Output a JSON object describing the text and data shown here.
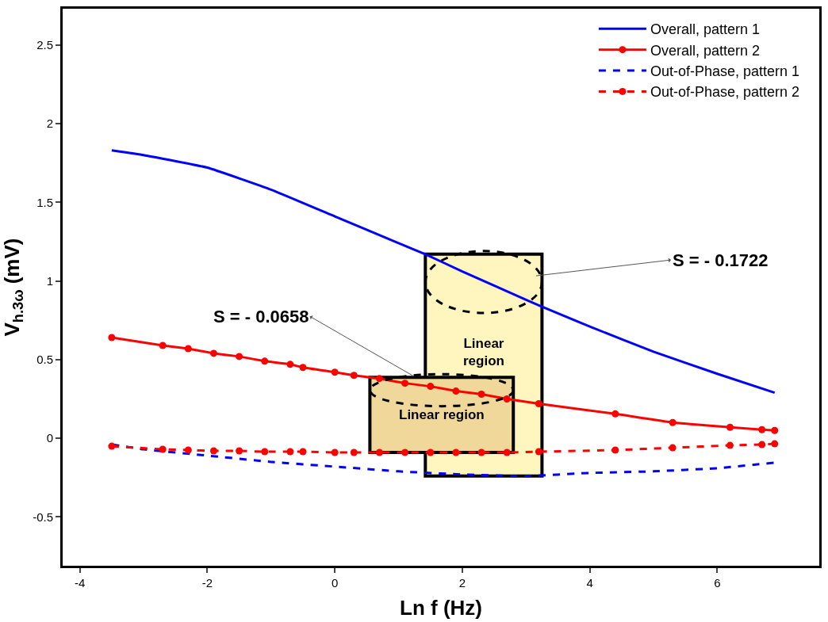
{
  "chart_data": {
    "type": "line",
    "xlabel": "Ln f (Hz)",
    "ylabel": "V$_{h.3ω}$ (mV)",
    "xlim": [
      -4.27,
      7.6
    ],
    "xticks": [
      -4,
      -2,
      0,
      2,
      4,
      6
    ],
    "ylim": [
      -0.81,
      2.73
    ],
    "yticks": [
      -0.5,
      0,
      0.5,
      1,
      1.5,
      2,
      2.5
    ],
    "grid": false,
    "legend": "top right",
    "series": [
      {
        "name": "Overall, pattern 1",
        "color": "#0000ff",
        "line_style": "solid",
        "marker": "none",
        "x": [
          -3.5,
          -3,
          -2,
          -1,
          0,
          1,
          1.42,
          2,
          3,
          3.2,
          4,
          5,
          6,
          6.9
        ],
        "values": [
          1.83,
          1.8,
          1.72,
          1.58,
          1.41,
          1.24,
          1.17,
          1.06,
          0.88,
          0.845,
          0.71,
          0.55,
          0.41,
          0.29
        ]
      },
      {
        "name": "Overall, pattern 2",
        "color": "#ff0000",
        "line_style": "solid",
        "marker": "circle",
        "x": [
          -3.5,
          -2.7,
          -2.3,
          -1.9,
          -1.5,
          -1.1,
          -0.7,
          -0.5,
          0,
          0.3,
          0.7,
          1.1,
          1.5,
          1.9,
          2.3,
          2.7,
          3.2,
          4.4,
          5.3,
          6.2,
          6.7,
          6.9
        ],
        "values": [
          0.64,
          0.59,
          0.57,
          0.54,
          0.52,
          0.49,
          0.47,
          0.45,
          0.42,
          0.4,
          0.38,
          0.35,
          0.33,
          0.3,
          0.28,
          0.25,
          0.22,
          0.155,
          0.1,
          0.07,
          0.055,
          0.05
        ]
      },
      {
        "name": "Out-of-Phase, pattern 1",
        "color": "#0000ff",
        "line_style": "dashed",
        "marker": "none",
        "x": [
          -3.5,
          -3,
          -2,
          -1,
          0,
          1,
          2,
          3,
          4,
          5,
          6,
          6.9
        ],
        "values": [
          -0.04,
          -0.07,
          -0.11,
          -0.15,
          -0.18,
          -0.21,
          -0.23,
          -0.24,
          -0.22,
          -0.21,
          -0.19,
          -0.155
        ]
      },
      {
        "name": "Out-of-Phase, pattern 2",
        "color": "#ff0000",
        "line_style": "dashed",
        "marker": "circle",
        "x": [
          -3.5,
          -2.7,
          -2.3,
          -1.9,
          -1.5,
          -1.1,
          -0.7,
          -0.5,
          0,
          0.3,
          0.7,
          1.1,
          1.5,
          1.9,
          2.3,
          2.7,
          3.2,
          4.4,
          5.3,
          6.2,
          6.7,
          6.9
        ],
        "values": [
          -0.05,
          -0.07,
          -0.075,
          -0.08,
          -0.08,
          -0.085,
          -0.085,
          -0.085,
          -0.09,
          -0.09,
          -0.09,
          -0.09,
          -0.09,
          -0.09,
          -0.09,
          -0.09,
          -0.085,
          -0.075,
          -0.06,
          -0.045,
          -0.04,
          -0.035
        ]
      }
    ],
    "bands": [
      {
        "axis": "x",
        "from": 1.42,
        "to": 3.25,
        "label": "Linear\nregion",
        "color": "#fff5bf"
      },
      {
        "axis": "x",
        "from": 0.55,
        "to": 2.8,
        "label": "Linear region",
        "color": "#f0d89a"
      }
    ],
    "annotations": [
      "S = - 0.1722",
      "S = - 0.0658"
    ]
  }
}
